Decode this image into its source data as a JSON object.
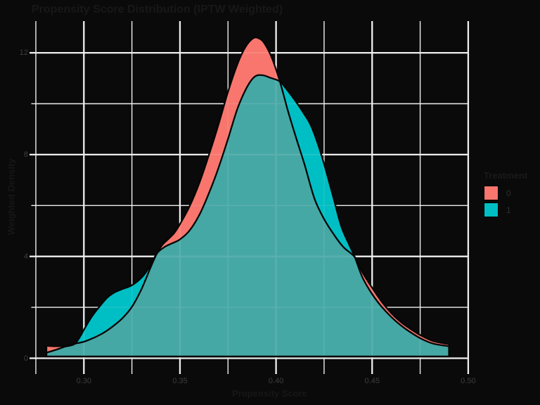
{
  "title": "Propensity Score Distribution (IPTW Weighted)",
  "axes": {
    "x_label": "Propensity Score",
    "y_label": "Weighted Density",
    "x_ticks": [
      {
        "v": 0.3,
        "label": "0.30"
      },
      {
        "v": 0.35,
        "label": "0.35"
      },
      {
        "v": 0.4,
        "label": "0.40"
      },
      {
        "v": 0.45,
        "label": "0.45"
      },
      {
        "v": 0.5,
        "label": "0.50"
      }
    ],
    "x_minor": [
      0.275,
      0.325,
      0.375,
      0.425,
      0.475
    ],
    "y_ticks": [
      {
        "v": 0,
        "label": "0"
      },
      {
        "v": 4,
        "label": "4"
      },
      {
        "v": 8,
        "label": "8"
      },
      {
        "v": 12,
        "label": "12"
      }
    ],
    "y_minor": [
      2,
      6,
      10
    ]
  },
  "legend": {
    "title": "Treatment",
    "entries": [
      {
        "label": "0",
        "color": "#F8766D"
      },
      {
        "label": "1",
        "color": "#00BFC4"
      }
    ]
  },
  "colors": {
    "background": "#0a0a0a",
    "grid": "#ededed",
    "outline": "#060606",
    "fill_0": "#F8766D",
    "fill_1": "#00BFC4",
    "overlap": "#46A8A5",
    "title_text": "#181818",
    "tick_text": "#3e3e3e"
  },
  "chart_data": {
    "type": "area",
    "subtype": "overlaid-density",
    "title": "Propensity Score Distribution (IPTW Weighted)",
    "xlabel": "Propensity Score",
    "ylabel": "Weighted Density",
    "xlim": [
      0.274,
      0.5
    ],
    "ylim": [
      0,
      13.2
    ],
    "grid": true,
    "legend_position": "right",
    "legend_title": "Treatment",
    "series": [
      {
        "name": "0",
        "color": "#F8766D",
        "points": [
          [
            0.2805,
            0.42
          ],
          [
            0.285,
            0.4
          ],
          [
            0.29,
            0.42
          ],
          [
            0.295,
            0.5
          ],
          [
            0.3,
            0.58
          ],
          [
            0.305,
            0.73
          ],
          [
            0.31,
            0.92
          ],
          [
            0.315,
            1.18
          ],
          [
            0.32,
            1.5
          ],
          [
            0.325,
            1.95
          ],
          [
            0.33,
            2.65
          ],
          [
            0.335,
            3.55
          ],
          [
            0.338,
            4.05
          ],
          [
            0.341,
            4.4
          ],
          [
            0.344,
            4.62
          ],
          [
            0.347,
            4.85
          ],
          [
            0.35,
            5.2
          ],
          [
            0.355,
            5.9
          ],
          [
            0.36,
            6.8
          ],
          [
            0.365,
            7.9
          ],
          [
            0.37,
            9.1
          ],
          [
            0.375,
            10.4
          ],
          [
            0.38,
            11.5
          ],
          [
            0.384,
            12.15
          ],
          [
            0.388,
            12.5
          ],
          [
            0.391,
            12.5
          ],
          [
            0.394,
            12.3
          ],
          [
            0.398,
            11.7
          ],
          [
            0.402,
            10.8
          ],
          [
            0.406,
            9.7
          ],
          [
            0.41,
            8.7
          ],
          [
            0.415,
            7.5
          ],
          [
            0.42,
            6.2
          ],
          [
            0.425,
            5.4
          ],
          [
            0.43,
            4.8
          ],
          [
            0.435,
            4.3
          ],
          [
            0.441,
            3.9
          ],
          [
            0.445,
            3.3
          ],
          [
            0.45,
            2.7
          ],
          [
            0.455,
            2.15
          ],
          [
            0.46,
            1.7
          ],
          [
            0.465,
            1.35
          ],
          [
            0.47,
            1.08
          ],
          [
            0.476,
            0.8
          ],
          [
            0.482,
            0.6
          ],
          [
            0.49,
            0.48
          ]
        ]
      },
      {
        "name": "1",
        "color": "#00BFC4",
        "points": [
          [
            0.2805,
            0.15
          ],
          [
            0.285,
            0.25
          ],
          [
            0.29,
            0.38
          ],
          [
            0.295,
            0.48
          ],
          [
            0.298,
            0.78
          ],
          [
            0.3,
            1.05
          ],
          [
            0.304,
            1.55
          ],
          [
            0.308,
            1.95
          ],
          [
            0.312,
            2.3
          ],
          [
            0.316,
            2.52
          ],
          [
            0.32,
            2.65
          ],
          [
            0.325,
            2.8
          ],
          [
            0.33,
            3.1
          ],
          [
            0.334,
            3.5
          ],
          [
            0.338,
            4.05
          ],
          [
            0.342,
            4.3
          ],
          [
            0.346,
            4.45
          ],
          [
            0.35,
            4.6
          ],
          [
            0.355,
            4.95
          ],
          [
            0.36,
            5.55
          ],
          [
            0.365,
            6.4
          ],
          [
            0.37,
            7.4
          ],
          [
            0.375,
            8.55
          ],
          [
            0.38,
            9.75
          ],
          [
            0.385,
            10.6
          ],
          [
            0.389,
            11.0
          ],
          [
            0.393,
            11.05
          ],
          [
            0.397,
            10.95
          ],
          [
            0.402,
            10.8
          ],
          [
            0.406,
            10.45
          ],
          [
            0.41,
            10.05
          ],
          [
            0.414,
            9.6
          ],
          [
            0.418,
            9.1
          ],
          [
            0.422,
            8.3
          ],
          [
            0.426,
            7.3
          ],
          [
            0.43,
            6.2
          ],
          [
            0.434,
            5.1
          ],
          [
            0.438,
            4.4
          ],
          [
            0.441,
            3.9
          ],
          [
            0.445,
            3.1
          ],
          [
            0.45,
            2.45
          ],
          [
            0.455,
            1.95
          ],
          [
            0.46,
            1.55
          ],
          [
            0.465,
            1.22
          ],
          [
            0.47,
            0.95
          ],
          [
            0.476,
            0.68
          ],
          [
            0.482,
            0.5
          ],
          [
            0.49,
            0.4
          ]
        ]
      }
    ]
  }
}
